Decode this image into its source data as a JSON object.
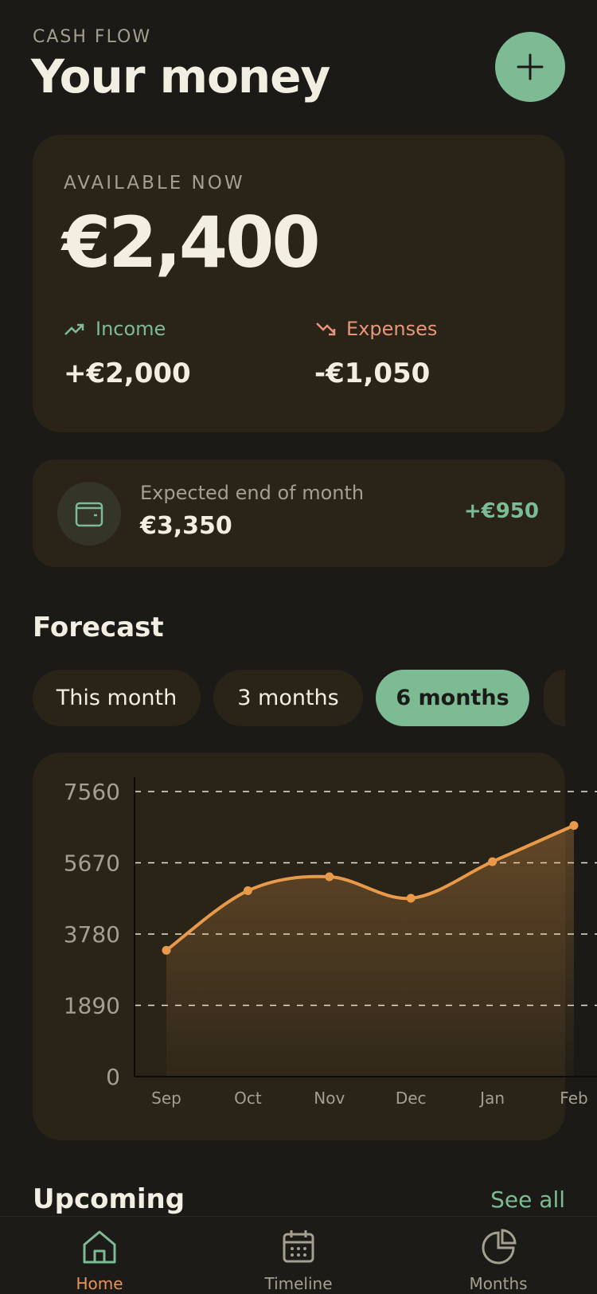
{
  "header": {
    "eyebrow": "CASH FLOW",
    "title": "Your money"
  },
  "balance": {
    "label": "AVAILABLE NOW",
    "amount": "€2,400",
    "income": {
      "label": "Income",
      "amount": "+€2,000"
    },
    "expenses": {
      "label": "Expenses",
      "amount": "-€1,050"
    }
  },
  "projection": {
    "label": "Expected end of month",
    "amount": "€3,350",
    "delta": "+€950"
  },
  "forecast": {
    "title": "Forecast",
    "tabs": [
      "This month",
      "3 months",
      "6 months"
    ],
    "active_tab": 2
  },
  "chart_data": {
    "type": "line",
    "categories": [
      "Sep",
      "Oct",
      "Nov",
      "Dec",
      "Jan",
      "Feb"
    ],
    "values": [
      3350,
      4930,
      5300,
      4730,
      5700,
      6660
    ],
    "color": "#e89a4a",
    "ylim": [
      0,
      7560
    ],
    "yticks": [
      0,
      1890,
      3780,
      5670,
      7560
    ],
    "grid": true
  },
  "upcoming": {
    "title": "Upcoming",
    "link": "See all"
  },
  "nav": {
    "items": [
      "Home",
      "Timeline",
      "Months"
    ],
    "active": 0
  }
}
